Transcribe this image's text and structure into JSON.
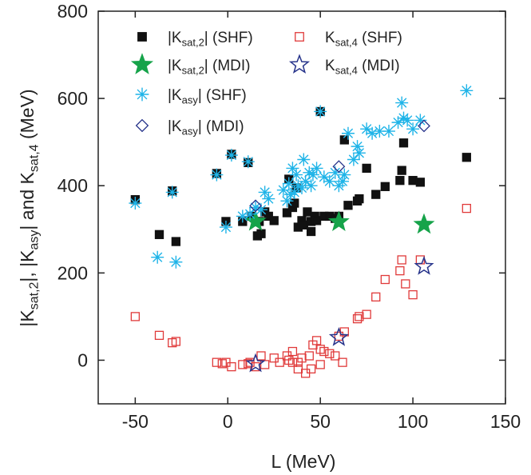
{
  "chart_data": {
    "type": "scatter",
    "x_label": "L (MeV)",
    "y_label": [
      {
        "text": "|K"
      },
      {
        "text": "sat,2",
        "sub": true
      },
      {
        "text": "|, |K"
      },
      {
        "text": "asy",
        "sub": true
      },
      {
        "text": "| and K"
      },
      {
        "text": "sat,4",
        "sub": true
      },
      {
        "text": " (MeV)"
      }
    ],
    "xlim": [
      -70,
      150
    ],
    "xticks": [
      -50,
      0,
      50,
      100,
      150
    ],
    "ylim": [
      -100,
      800
    ],
    "yticks": [
      0,
      200,
      400,
      600,
      800
    ],
    "series": [
      {
        "name": [
          {
            "text": "|K"
          },
          {
            "text": "sat,2",
            "sub": true
          },
          {
            "text": "| (SHF)"
          }
        ],
        "marker": "square",
        "filled": true,
        "color": "#111111",
        "x": [
          -50,
          -37,
          -30,
          -28,
          -6,
          -1,
          2,
          8,
          11,
          13,
          16,
          18,
          20,
          22,
          32,
          33,
          35,
          38,
          40,
          41,
          43,
          45,
          45,
          47,
          48,
          50,
          52,
          55,
          58,
          63,
          65,
          70,
          71,
          75,
          80,
          85,
          93,
          94,
          95,
          100,
          104,
          129,
          37,
          36,
          60,
          17,
          25
        ],
        "values": [
          368,
          288,
          388,
          272,
          428,
          318,
          472,
          318,
          453,
          330,
          285,
          290,
          340,
          330,
          338,
          415,
          350,
          305,
          320,
          310,
          340,
          295,
          318,
          330,
          320,
          570,
          330,
          330,
          325,
          505,
          355,
          365,
          370,
          440,
          380,
          398,
          412,
          435,
          498,
          412,
          408,
          465,
          395,
          360,
          330,
          318,
          320
        ]
      },
      {
        "name": [
          {
            "text": "|K"
          },
          {
            "text": "sat,2",
            "sub": true
          },
          {
            "text": "| (MDI)"
          }
        ],
        "marker": "star",
        "filled": true,
        "color": "#16a34a",
        "x": [
          15,
          60,
          106
        ],
        "values": [
          318,
          317,
          311
        ]
      },
      {
        "name": [
          {
            "text": "|K"
          },
          {
            "text": "asy",
            "sub": true
          },
          {
            "text": "| (SHF)"
          }
        ],
        "marker": "asterisk",
        "filled": false,
        "color": "#1fb4e8",
        "x": [
          -50,
          -38,
          -30,
          -28,
          -6,
          -1,
          2,
          8,
          11,
          12,
          15,
          18,
          20,
          22,
          32,
          33,
          34,
          35,
          36,
          38,
          40,
          42,
          44,
          45,
          46,
          48,
          50,
          52,
          55,
          58,
          60,
          62,
          63,
          65,
          68,
          70,
          71,
          75,
          78,
          82,
          87,
          92,
          94,
          95,
          97,
          100,
          104,
          129,
          30,
          37,
          41
        ],
        "values": [
          360,
          236,
          385,
          225,
          425,
          305,
          470,
          330,
          455,
          335,
          350,
          345,
          385,
          370,
          365,
          405,
          380,
          440,
          385,
          400,
          395,
          410,
          430,
          400,
          425,
          440,
          570,
          420,
          410,
          430,
          400,
          410,
          425,
          520,
          460,
          490,
          475,
          530,
          520,
          525,
          525,
          545,
          590,
          555,
          550,
          530,
          550,
          618,
          390,
          425,
          460
        ]
      },
      {
        "name": [
          {
            "text": "|K"
          },
          {
            "text": "asy",
            "sub": true
          },
          {
            "text": "| (MDI)"
          }
        ],
        "marker": "diamond",
        "filled": false,
        "color": "#27348b",
        "x": [
          15,
          60,
          106
        ],
        "values": [
          354,
          444,
          537
        ]
      },
      {
        "name": [
          {
            "text": "K"
          },
          {
            "text": "sat,4",
            "sub": true
          },
          {
            "text": " (SHF)"
          }
        ],
        "marker": "square",
        "filled": false,
        "color": "#e03a3a",
        "x": [
          -50,
          -37,
          -30,
          -28,
          -6,
          -3,
          -1,
          2,
          8,
          11,
          12,
          15,
          18,
          20,
          32,
          33,
          35,
          38,
          38,
          40,
          42,
          44,
          45,
          46,
          48,
          50,
          52,
          55,
          58,
          60,
          62,
          63,
          70,
          71,
          75,
          80,
          85,
          93,
          94,
          96,
          100,
          104,
          129,
          28,
          25,
          35,
          50
        ],
        "values": [
          100,
          57,
          40,
          43,
          -5,
          -8,
          -5,
          -15,
          -10,
          -8,
          -5,
          -15,
          10,
          -10,
          10,
          0,
          20,
          -20,
          -5,
          5,
          -30,
          10,
          -20,
          35,
          45,
          -10,
          20,
          15,
          10,
          55,
          -5,
          65,
          95,
          100,
          105,
          145,
          185,
          205,
          230,
          175,
          150,
          230,
          348,
          -5,
          5,
          -5,
          25
        ]
      },
      {
        "name": [
          {
            "text": "K"
          },
          {
            "text": "sat,4",
            "sub": true
          },
          {
            "text": " (MDI)"
          }
        ],
        "marker": "star",
        "filled": false,
        "color": "#27348b",
        "x": [
          15,
          60,
          106
        ],
        "values": [
          -8,
          52,
          215
        ]
      }
    ]
  }
}
